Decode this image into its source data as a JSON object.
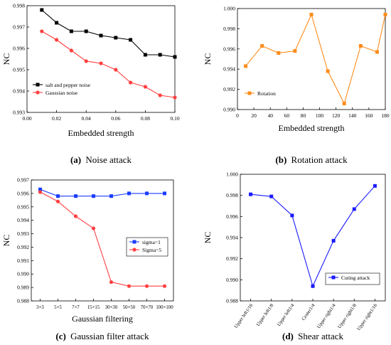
{
  "chart_data": [
    {
      "id": "a",
      "type": "line",
      "caption_letter": "(a)",
      "caption_text": "Noise attack",
      "xlabel": "Embedded strength",
      "ylabel": "NC",
      "xlim": [
        0.0,
        0.1
      ],
      "ylim": [
        0.993,
        0.998
      ],
      "xticks": [
        "0.00",
        "0.02",
        "0.04",
        "0.06",
        "0.08",
        "0.10"
      ],
      "yticks": [
        "0.993",
        "0.994",
        "0.995",
        "0.996",
        "0.997",
        "0.998"
      ],
      "x": [
        0.01,
        0.02,
        0.03,
        0.04,
        0.05,
        0.06,
        0.07,
        0.08,
        0.09,
        0.1
      ],
      "legend_position": "bottom-left",
      "series": [
        {
          "name": "salt and pepper noise",
          "color": "#000000",
          "marker": "square",
          "values": [
            0.9978,
            0.9972,
            0.9968,
            0.9968,
            0.9966,
            0.9965,
            0.9964,
            0.9957,
            0.9957,
            0.9956
          ]
        },
        {
          "name": "Gaussian noise",
          "color": "#ff4040",
          "marker": "circle",
          "values": [
            0.9968,
            0.9964,
            0.9959,
            0.9954,
            0.9953,
            0.995,
            0.9944,
            0.9942,
            0.9938,
            0.9937
          ]
        }
      ]
    },
    {
      "id": "b",
      "type": "line",
      "caption_letter": "(b)",
      "caption_text": "Rotation attack",
      "xlabel": "Embedded strength",
      "ylabel": "NC",
      "xlim": [
        0,
        180
      ],
      "ylim": [
        0.99,
        1.0
      ],
      "xticks": [
        "0",
        "20",
        "40",
        "60",
        "80",
        "100",
        "120",
        "140",
        "160",
        "180"
      ],
      "yticks": [
        "0.990",
        "0.992",
        "0.994",
        "0.996",
        "0.998",
        "1.000"
      ],
      "x": [
        10,
        30,
        50,
        70,
        90,
        110,
        130,
        150,
        170,
        180
      ],
      "legend_position": "bottom-left",
      "series": [
        {
          "name": "Rotation",
          "color": "#ff8c1a",
          "marker": "square",
          "values": [
            0.9943,
            0.9963,
            0.9956,
            0.9958,
            0.9994,
            0.9938,
            0.9906,
            0.9963,
            0.9957,
            0.9994
          ]
        }
      ]
    },
    {
      "id": "c",
      "type": "line",
      "caption_letter": "(c)",
      "caption_text": "Gaussian filter attack",
      "xlabel": "Gaussian filtering",
      "ylabel": "NC",
      "ylim": [
        0.988,
        0.997
      ],
      "categories": [
        "3×3",
        "5×5",
        "7×7",
        "15×15",
        "30×30",
        "50×50",
        "70×70",
        "100×100"
      ],
      "yticks": [
        "0.988",
        "0.989",
        "0.990",
        "0.991",
        "0.992",
        "0.993",
        "0.994",
        "0.995",
        "0.996",
        "0.997"
      ],
      "legend_position": "right",
      "series": [
        {
          "name": "sigma=1",
          "color": "#1a3cff",
          "marker": "square",
          "values": [
            0.9963,
            0.9958,
            0.9958,
            0.9958,
            0.9958,
            0.996,
            0.996,
            0.996
          ]
        },
        {
          "name": "Sigma=5",
          "color": "#ff4040",
          "marker": "circle",
          "values": [
            0.9961,
            0.9954,
            0.9943,
            0.9934,
            0.9894,
            0.9891,
            0.9891,
            0.9891
          ]
        }
      ]
    },
    {
      "id": "d",
      "type": "line",
      "caption_letter": "(d)",
      "caption_text": "Shear attack",
      "xlabel": "",
      "ylabel": "NC",
      "ylim": [
        0.988,
        1.0
      ],
      "categories": [
        "Upper left1/16",
        "Upper left1/8",
        "Upper left1/4",
        "Center1/4",
        "Upper right1/4",
        "Upper right1/8",
        "Upper right1/16"
      ],
      "yticks": [
        "0.988",
        "0.990",
        "0.992",
        "0.994",
        "0.996",
        "0.998",
        "1.000"
      ],
      "legend_position": "bottom-right",
      "series": [
        {
          "name": "Cuting attack",
          "color": "#1a1aff",
          "marker": "square",
          "values": [
            0.9981,
            0.9979,
            0.9961,
            0.9894,
            0.9937,
            0.9967,
            0.9989
          ]
        }
      ]
    }
  ]
}
